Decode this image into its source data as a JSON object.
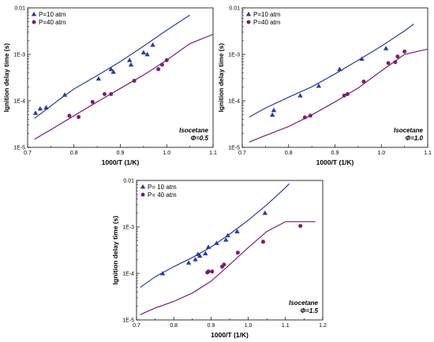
{
  "colors": {
    "p10": "#2b3a9e",
    "p40": "#7a1f6e"
  },
  "chart_data": [
    {
      "type": "scatter",
      "xlabel": "1000/T (1/K)",
      "ylabel": "Ignition delay time (s)",
      "xlim": [
        0.7,
        1.1
      ],
      "ylim": [
        1e-05,
        0.01
      ],
      "yscale": "log",
      "xticks": [
        "0.7",
        "0.8",
        "0.9",
        "1.0",
        "1.1"
      ],
      "yticks": [
        "1E-5",
        "1E-4",
        "1E-3",
        "0.01"
      ],
      "legend_position": "top-left",
      "annotation": [
        "Isocetane",
        "Φ=0.5"
      ],
      "series": [
        {
          "name": "P=10 atm",
          "marker": "triangle",
          "color": "#2b3a9e",
          "points": [
            [
              0.717,
              5.5e-05
            ],
            [
              0.727,
              6.8e-05
            ],
            [
              0.74,
              7.2e-05
            ],
            [
              0.78,
              0.000135
            ],
            [
              0.853,
              0.0003
            ],
            [
              0.88,
              0.00048
            ],
            [
              0.885,
              0.00042
            ],
            [
              0.92,
              0.00075
            ],
            [
              0.923,
              0.0006
            ],
            [
              0.95,
              0.0011
            ],
            [
              0.958,
              0.001
            ],
            [
              0.97,
              0.0016
            ]
          ],
          "model": [
            [
              0.715,
              4.2e-05
            ],
            [
              0.74,
              6.5e-05
            ],
            [
              0.77,
              0.00011
            ],
            [
              0.8,
              0.00018
            ],
            [
              0.85,
              0.00035
            ],
            [
              0.9,
              0.0007
            ],
            [
              0.95,
              0.0015
            ],
            [
              1.0,
              0.0033
            ],
            [
              1.05,
              0.007
            ]
          ]
        },
        {
          "name": "P=40 atm",
          "marker": "circle",
          "color": "#7a1f6e",
          "points": [
            [
              0.79,
              4.8e-05
            ],
            [
              0.81,
              4.5e-05
            ],
            [
              0.84,
              9.5e-05
            ],
            [
              0.866,
              0.00014
            ],
            [
              0.88,
              0.00014
            ],
            [
              0.93,
              0.00027
            ],
            [
              0.982,
              0.00048
            ],
            [
              0.99,
              0.0006
            ],
            [
              1.0,
              0.00075
            ]
          ],
          "model": [
            [
              0.715,
              1.5e-05
            ],
            [
              0.75,
              2.4e-05
            ],
            [
              0.8,
              4.8e-05
            ],
            [
              0.85,
              9.5e-05
            ],
            [
              0.9,
              0.000185
            ],
            [
              0.95,
              0.00036
            ],
            [
              1.0,
              0.00075
            ],
            [
              1.05,
              0.0017
            ],
            [
              1.1,
              0.0027
            ]
          ]
        }
      ]
    },
    {
      "type": "scatter",
      "xlabel": "1000/T (1/K)",
      "ylabel": "Ignition delay time (s)",
      "xlim": [
        0.7,
        1.1
      ],
      "ylim": [
        1e-05,
        0.01
      ],
      "yscale": "log",
      "xticks": [
        "0.7",
        "0.8",
        "0.9",
        "1.0",
        "1.1"
      ],
      "yticks": [
        "1E-5",
        "1E-4",
        "1E-3",
        "0.01"
      ],
      "legend_position": "top-left",
      "annotation": [
        "Isocetane",
        "Φ=1.0"
      ],
      "series": [
        {
          "name": "P=10 atm",
          "marker": "triangle",
          "color": "#2b3a9e",
          "points": [
            [
              0.765,
              5e-05
            ],
            [
              0.768,
              6.3e-05
            ],
            [
              0.825,
              0.00013
            ],
            [
              0.865,
              0.00021
            ],
            [
              0.91,
              0.00048
            ],
            [
              0.958,
              0.0008
            ],
            [
              1.01,
              0.00135
            ]
          ],
          "model": [
            [
              0.715,
              4.5e-05
            ],
            [
              0.75,
              7e-05
            ],
            [
              0.8,
              0.00012
            ],
            [
              0.85,
              0.0002
            ],
            [
              0.9,
              0.00038
            ],
            [
              0.95,
              0.00075
            ],
            [
              1.0,
              0.0015
            ],
            [
              1.05,
              0.0032
            ],
            [
              1.07,
              0.0045
            ]
          ]
        },
        {
          "name": "P=40 atm",
          "marker": "circle",
          "color": "#7a1f6e",
          "points": [
            [
              0.835,
              4.4e-05
            ],
            [
              0.847,
              4.8e-05
            ],
            [
              0.92,
              0.00013
            ],
            [
              0.927,
              0.00014
            ],
            [
              0.962,
              0.00026
            ],
            [
              1.015,
              0.00065
            ],
            [
              1.03,
              0.00068
            ],
            [
              1.035,
              0.0009
            ],
            [
              1.05,
              0.00115
            ]
          ],
          "model": [
            [
              0.715,
              1.3e-05
            ],
            [
              0.75,
              1.8e-05
            ],
            [
              0.8,
              2.8e-05
            ],
            [
              0.85,
              5e-05
            ],
            [
              0.9,
              9.5e-05
            ],
            [
              0.95,
              0.00019
            ],
            [
              1.0,
              0.00044
            ],
            [
              1.05,
              0.001
            ],
            [
              1.1,
              0.0013
            ]
          ]
        }
      ]
    },
    {
      "type": "scatter",
      "xlabel": "1000/T (1/K)",
      "ylabel": "Ignition delay time (s)",
      "xlim": [
        0.7,
        1.2
      ],
      "ylim": [
        1e-05,
        0.01
      ],
      "yscale": "log",
      "xticks": [
        "0.7",
        "0.8",
        "0.9",
        "1.0",
        "1.1",
        "1.2"
      ],
      "yticks": [
        "1E-5",
        "1E-4",
        "1E-3",
        "0.01"
      ],
      "legend_position": "top-left",
      "annotation": [
        "Isocetane",
        "Φ=1.5"
      ],
      "series": [
        {
          "name": "P= 10 atm",
          "marker": "triangle",
          "color": "#2b3a9e",
          "points": [
            [
              0.77,
              0.0001
            ],
            [
              0.84,
              0.00017
            ],
            [
              0.858,
              0.0002
            ],
            [
              0.865,
              0.00026
            ],
            [
              0.87,
              0.00024
            ],
            [
              0.885,
              0.00027
            ],
            [
              0.893,
              0.00037
            ],
            [
              0.915,
              0.00045
            ],
            [
              0.94,
              0.00053
            ],
            [
              0.945,
              0.00066
            ],
            [
              0.97,
              0.0008
            ],
            [
              1.045,
              0.002
            ]
          ],
          "model": [
            [
              0.71,
              5e-05
            ],
            [
              0.75,
              8.5e-05
            ],
            [
              0.8,
              0.00014
            ],
            [
              0.85,
              0.00022
            ],
            [
              0.9,
              0.00037
            ],
            [
              0.95,
              0.0007
            ],
            [
              1.0,
              0.0014
            ],
            [
              1.05,
              0.003
            ],
            [
              1.1,
              0.007
            ],
            [
              1.11,
              0.0085
            ]
          ]
        },
        {
          "name": "P= 40 atm",
          "marker": "circle",
          "color": "#7a1f6e",
          "points": [
            [
              0.89,
              0.000105
            ],
            [
              0.893,
              0.00011
            ],
            [
              0.903,
              0.00011
            ],
            [
              0.93,
              0.00014
            ],
            [
              0.935,
              0.000155
            ],
            [
              0.972,
              0.00028
            ],
            [
              1.04,
              0.00048
            ],
            [
              1.14,
              0.00105
            ]
          ],
          "model": [
            [
              0.71,
              1.3e-05
            ],
            [
              0.75,
              1.8e-05
            ],
            [
              0.8,
              2.5e-05
            ],
            [
              0.85,
              3.8e-05
            ],
            [
              0.9,
              6.8e-05
            ],
            [
              0.95,
              0.000155
            ],
            [
              1.0,
              0.00036
            ],
            [
              1.05,
              0.0008
            ],
            [
              1.1,
              0.0013
            ],
            [
              1.18,
              0.0013
            ]
          ]
        }
      ]
    }
  ]
}
